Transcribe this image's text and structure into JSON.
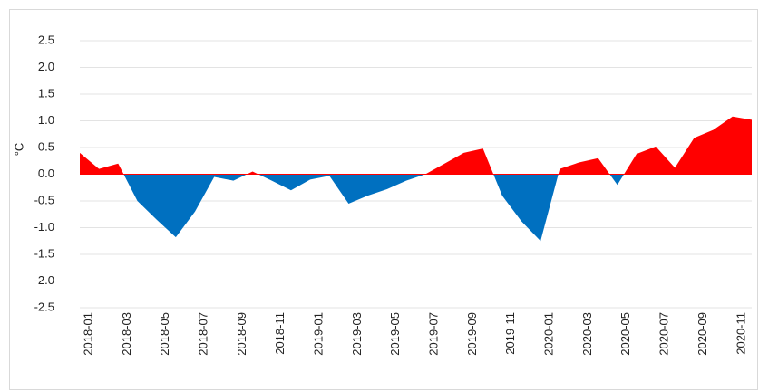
{
  "chart_data": {
    "type": "area",
    "y_label": "°C",
    "categories": [
      "2018-01",
      null,
      "2018-03",
      null,
      "2018-05",
      null,
      "2018-07",
      null,
      "2018-09",
      null,
      "2018-11",
      null,
      "2019-01",
      null,
      "2019-03",
      null,
      "2019-05",
      null,
      "2019-07",
      null,
      "2019-09",
      null,
      "2019-11",
      null,
      "2020-01",
      null,
      "2020-03",
      null,
      "2020-05",
      null,
      "2020-07",
      null,
      "2020-09",
      null,
      "2020-11",
      null
    ],
    "values": [
      0.4,
      0.1,
      0.2,
      -0.5,
      -0.85,
      -1.18,
      -0.7,
      -0.05,
      -0.12,
      0.05,
      -0.12,
      -0.3,
      -0.1,
      -0.03,
      -0.55,
      -0.4,
      -0.28,
      -0.12,
      0.0,
      0.2,
      0.4,
      0.48,
      -0.4,
      -0.88,
      -1.25,
      0.1,
      0.22,
      0.3,
      -0.2,
      0.38,
      0.52,
      0.12,
      0.68,
      0.83,
      1.08,
      1.02
    ],
    "positive_color": "#ff0000",
    "negative_color": "#0070c0",
    "ylim": [
      -2.5,
      2.5
    ],
    "yticks": [
      2.5,
      {
        "value": 2,
        "label": "2.0"
      },
      1.5,
      {
        "value": 1,
        "label": "1.0"
      },
      0.5,
      {
        "value": 0,
        "label": "0.0"
      },
      -0.5,
      {
        "value": -1,
        "label": "-1.0"
      },
      -1.5,
      {
        "value": -2,
        "label": "-2.0"
      },
      -2.5
    ],
    "grid": true
  }
}
